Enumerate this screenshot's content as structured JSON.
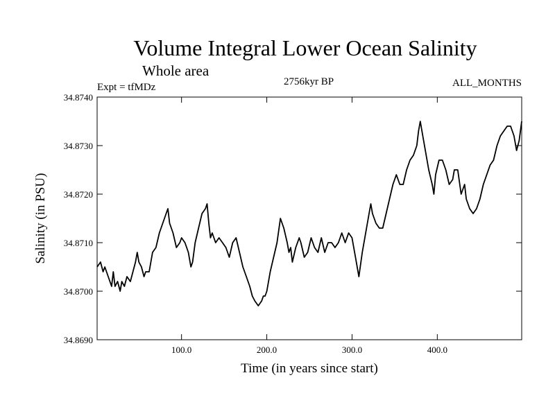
{
  "chart_data": {
    "type": "line",
    "title": "Volume Integral Lower Ocean Salinity",
    "subtitle": "Whole area",
    "experiment": "Expt = tfMDz",
    "period": "2756kyr BP",
    "months": "ALL_MONTHS",
    "xlabel": "Time (in years since start)",
    "ylabel": "Salinity (in PSU)",
    "xlim": [
      1,
      499
    ],
    "ylim": [
      34.869,
      34.874
    ],
    "xticks": [
      {
        "value": 100,
        "label": "100.0"
      },
      {
        "value": 200,
        "label": "200.0"
      },
      {
        "value": 300,
        "label": "300.0"
      },
      {
        "value": 400,
        "label": "400.0"
      }
    ],
    "yticks": [
      {
        "value": 34.869,
        "label": "34.8690"
      },
      {
        "value": 34.87,
        "label": "34.8700"
      },
      {
        "value": 34.871,
        "label": "34.8710"
      },
      {
        "value": 34.872,
        "label": "34.8720"
      },
      {
        "value": 34.873,
        "label": "34.8730"
      },
      {
        "value": 34.874,
        "label": "34.8740"
      }
    ],
    "line_color": "#000000",
    "series": [
      {
        "name": "Salinity",
        "x": [
          1,
          5,
          8,
          10,
          14,
          18,
          20,
          22,
          25,
          28,
          30,
          33,
          36,
          40,
          43,
          46,
          48,
          50,
          53,
          56,
          58,
          62,
          66,
          70,
          74,
          78,
          82,
          84,
          86,
          90,
          94,
          98,
          100,
          104,
          108,
          111,
          113,
          116,
          120,
          124,
          128,
          130,
          132,
          134,
          136,
          140,
          144,
          148,
          152,
          156,
          160,
          164,
          168,
          172,
          176,
          180,
          183,
          186,
          190,
          194,
          196,
          198,
          200,
          204,
          208,
          212,
          216,
          220,
          224,
          226,
          228,
          230,
          234,
          238,
          240,
          244,
          248,
          252,
          256,
          260,
          264,
          268,
          272,
          276,
          280,
          284,
          288,
          292,
          296,
          300,
          304,
          308,
          312,
          316,
          320,
          322,
          324,
          328,
          332,
          336,
          340,
          344,
          348,
          352,
          356,
          360,
          364,
          368,
          372,
          376,
          378,
          380,
          382,
          386,
          390,
          394,
          396,
          398,
          402,
          406,
          410,
          414,
          418,
          420,
          424,
          428,
          432,
          434,
          438,
          442,
          446,
          450,
          454,
          458,
          462,
          466,
          470,
          474,
          478,
          482,
          486,
          490,
          493,
          496,
          499
        ],
        "values": [
          34.8705,
          34.8706,
          34.8704,
          34.8705,
          34.8703,
          34.8701,
          34.8704,
          34.8701,
          34.8702,
          34.87,
          34.8702,
          34.8701,
          34.8703,
          34.8702,
          34.8704,
          34.8706,
          34.8708,
          34.8706,
          34.8705,
          34.8703,
          34.8704,
          34.8704,
          34.8708,
          34.8709,
          34.8712,
          34.8714,
          34.8716,
          34.8717,
          34.8714,
          34.8712,
          34.8709,
          34.871,
          34.8711,
          34.871,
          34.8708,
          34.8705,
          34.8706,
          34.871,
          34.8713,
          34.8716,
          34.8717,
          34.8718,
          34.8714,
          34.8711,
          34.8712,
          34.871,
          34.8711,
          34.871,
          34.8709,
          34.8707,
          34.871,
          34.8711,
          34.8708,
          34.8705,
          34.8703,
          34.8701,
          34.8699,
          34.8698,
          34.8697,
          34.8698,
          34.8699,
          34.8699,
          34.87,
          34.8704,
          34.8707,
          34.871,
          34.8715,
          34.8713,
          34.871,
          34.8708,
          34.8709,
          34.8706,
          34.8709,
          34.8711,
          34.871,
          34.8707,
          34.8708,
          34.8711,
          34.8709,
          34.8708,
          34.8711,
          34.8708,
          34.871,
          34.871,
          34.8709,
          34.871,
          34.8712,
          34.871,
          34.8712,
          34.8711,
          34.8707,
          34.8703,
          34.8708,
          34.8712,
          34.8716,
          34.8718,
          34.8716,
          34.8714,
          34.8713,
          34.8713,
          34.8716,
          34.8719,
          34.8722,
          34.8724,
          34.8722,
          34.8722,
          34.8725,
          34.8727,
          34.8728,
          34.873,
          34.8733,
          34.8735,
          34.8733,
          34.8729,
          34.8725,
          34.8722,
          34.872,
          34.8724,
          34.8727,
          34.8727,
          34.8725,
          34.8722,
          34.8723,
          34.8725,
          34.8725,
          34.872,
          34.8722,
          34.8719,
          34.8717,
          34.8716,
          34.8717,
          34.8719,
          34.8722,
          34.8724,
          34.8726,
          34.8727,
          34.873,
          34.8732,
          34.8733,
          34.8734,
          34.8734,
          34.8732,
          34.8729,
          34.8731,
          34.8735
        ]
      }
    ]
  }
}
